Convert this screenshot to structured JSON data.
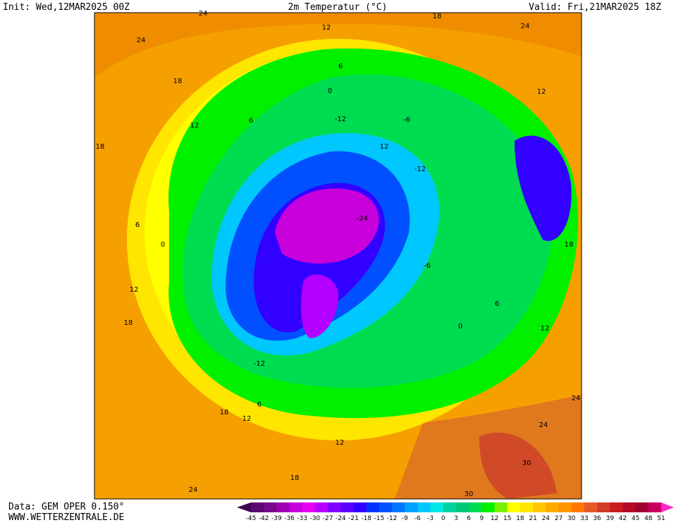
{
  "header": {
    "init": "Init: Wed,12MAR2025 00Z",
    "title": "2m Temperatur (°C)",
    "valid": "Valid: Fri,21MAR2025 18Z"
  },
  "footer": {
    "source": "Data: GEM OPER 0.150°",
    "site": "WWW.WETTERZENTRALE.DE"
  },
  "map_labels": [
    "24",
    "18",
    "24",
    "12",
    "24",
    "18",
    "6",
    "12",
    "0",
    "12",
    "6",
    "-12",
    "-6",
    "18",
    "12",
    "-12",
    "-24",
    "6",
    "0",
    "18",
    "-6",
    "12",
    "6",
    "18",
    "0",
    "12",
    "-12",
    "6",
    "18",
    "12",
    "24",
    "24",
    "12",
    "18",
    "30",
    "24",
    "30"
  ],
  "legend": {
    "ticks": [
      -45,
      -42,
      -39,
      -36,
      -33,
      -30,
      -27,
      -24,
      -21,
      -18,
      -15,
      -12,
      -9,
      -6,
      -3,
      0,
      3,
      6,
      9,
      12,
      15,
      18,
      21,
      24,
      27,
      30,
      33,
      36,
      39,
      42,
      45,
      48,
      51
    ],
    "colors": [
      "#3c0050",
      "#5a0a6e",
      "#780a8c",
      "#a000b4",
      "#c800dc",
      "#e600f0",
      "#b400ff",
      "#8200ff",
      "#5a00ff",
      "#3200ff",
      "#0032ff",
      "#0050ff",
      "#0078ff",
      "#00a0ff",
      "#00c8ff",
      "#00e6e6",
      "#00d2a0",
      "#00c878",
      "#00dc50",
      "#00f000",
      "#78f000",
      "#ffff00",
      "#ffe600",
      "#ffc800",
      "#ffaa00",
      "#ff9600",
      "#ff7800",
      "#e65a28",
      "#d23c28",
      "#c81e1e",
      "#b40a28",
      "#a00032",
      "#c80064",
      "#f00096",
      "#ff28c8"
    ]
  }
}
